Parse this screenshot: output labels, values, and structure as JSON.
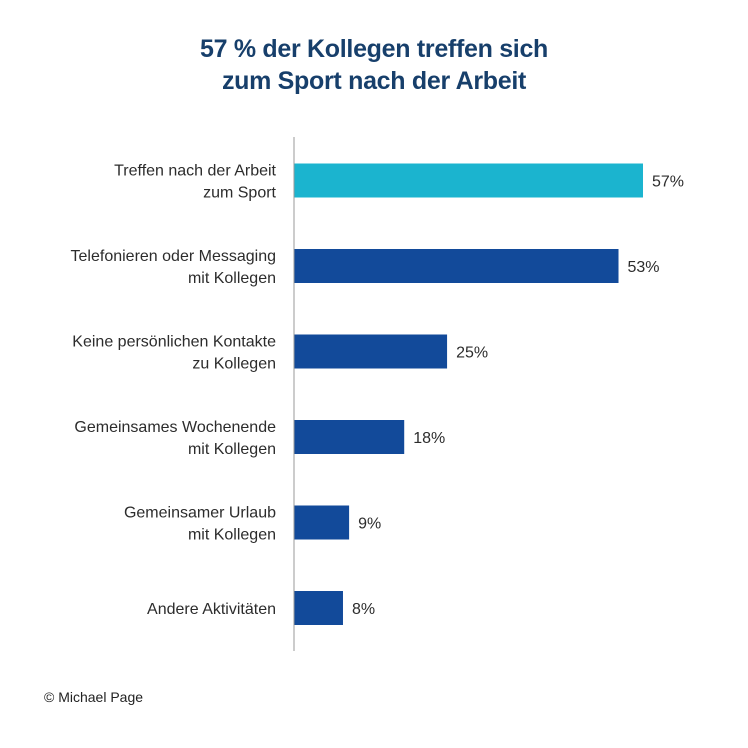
{
  "chart_data": {
    "type": "bar",
    "orientation": "horizontal",
    "title_lines": [
      "57 % der Kollegen treffen sich",
      "zum Sport nach der Arbeit"
    ],
    "categories": [
      [
        "Treffen nach der Arbeit",
        "zum Sport"
      ],
      [
        "Telefonieren oder Messaging",
        "mit Kollegen"
      ],
      [
        "Keine persönlichen Kontakte",
        "zu Kollegen"
      ],
      [
        "Gemeinsames Wochenende",
        "mit Kollegen"
      ],
      [
        "Gemeinsamer Urlaub",
        "mit Kollegen"
      ],
      [
        "Andere Aktivitäten"
      ]
    ],
    "values": [
      57,
      53,
      25,
      18,
      9,
      8
    ],
    "value_labels": [
      "57%",
      "53%",
      "25%",
      "18%",
      "9%",
      "8%"
    ],
    "unit": "%",
    "xlim": [
      0,
      60
    ],
    "highlight_index": 0,
    "grid": false
  },
  "colors": {
    "title": "#173f6b",
    "highlight_bar": "#1bb4cf",
    "bar": "#124a9a",
    "axis": "#9a9a9a"
  },
  "footer": {
    "copyright": "© Michael Page"
  }
}
